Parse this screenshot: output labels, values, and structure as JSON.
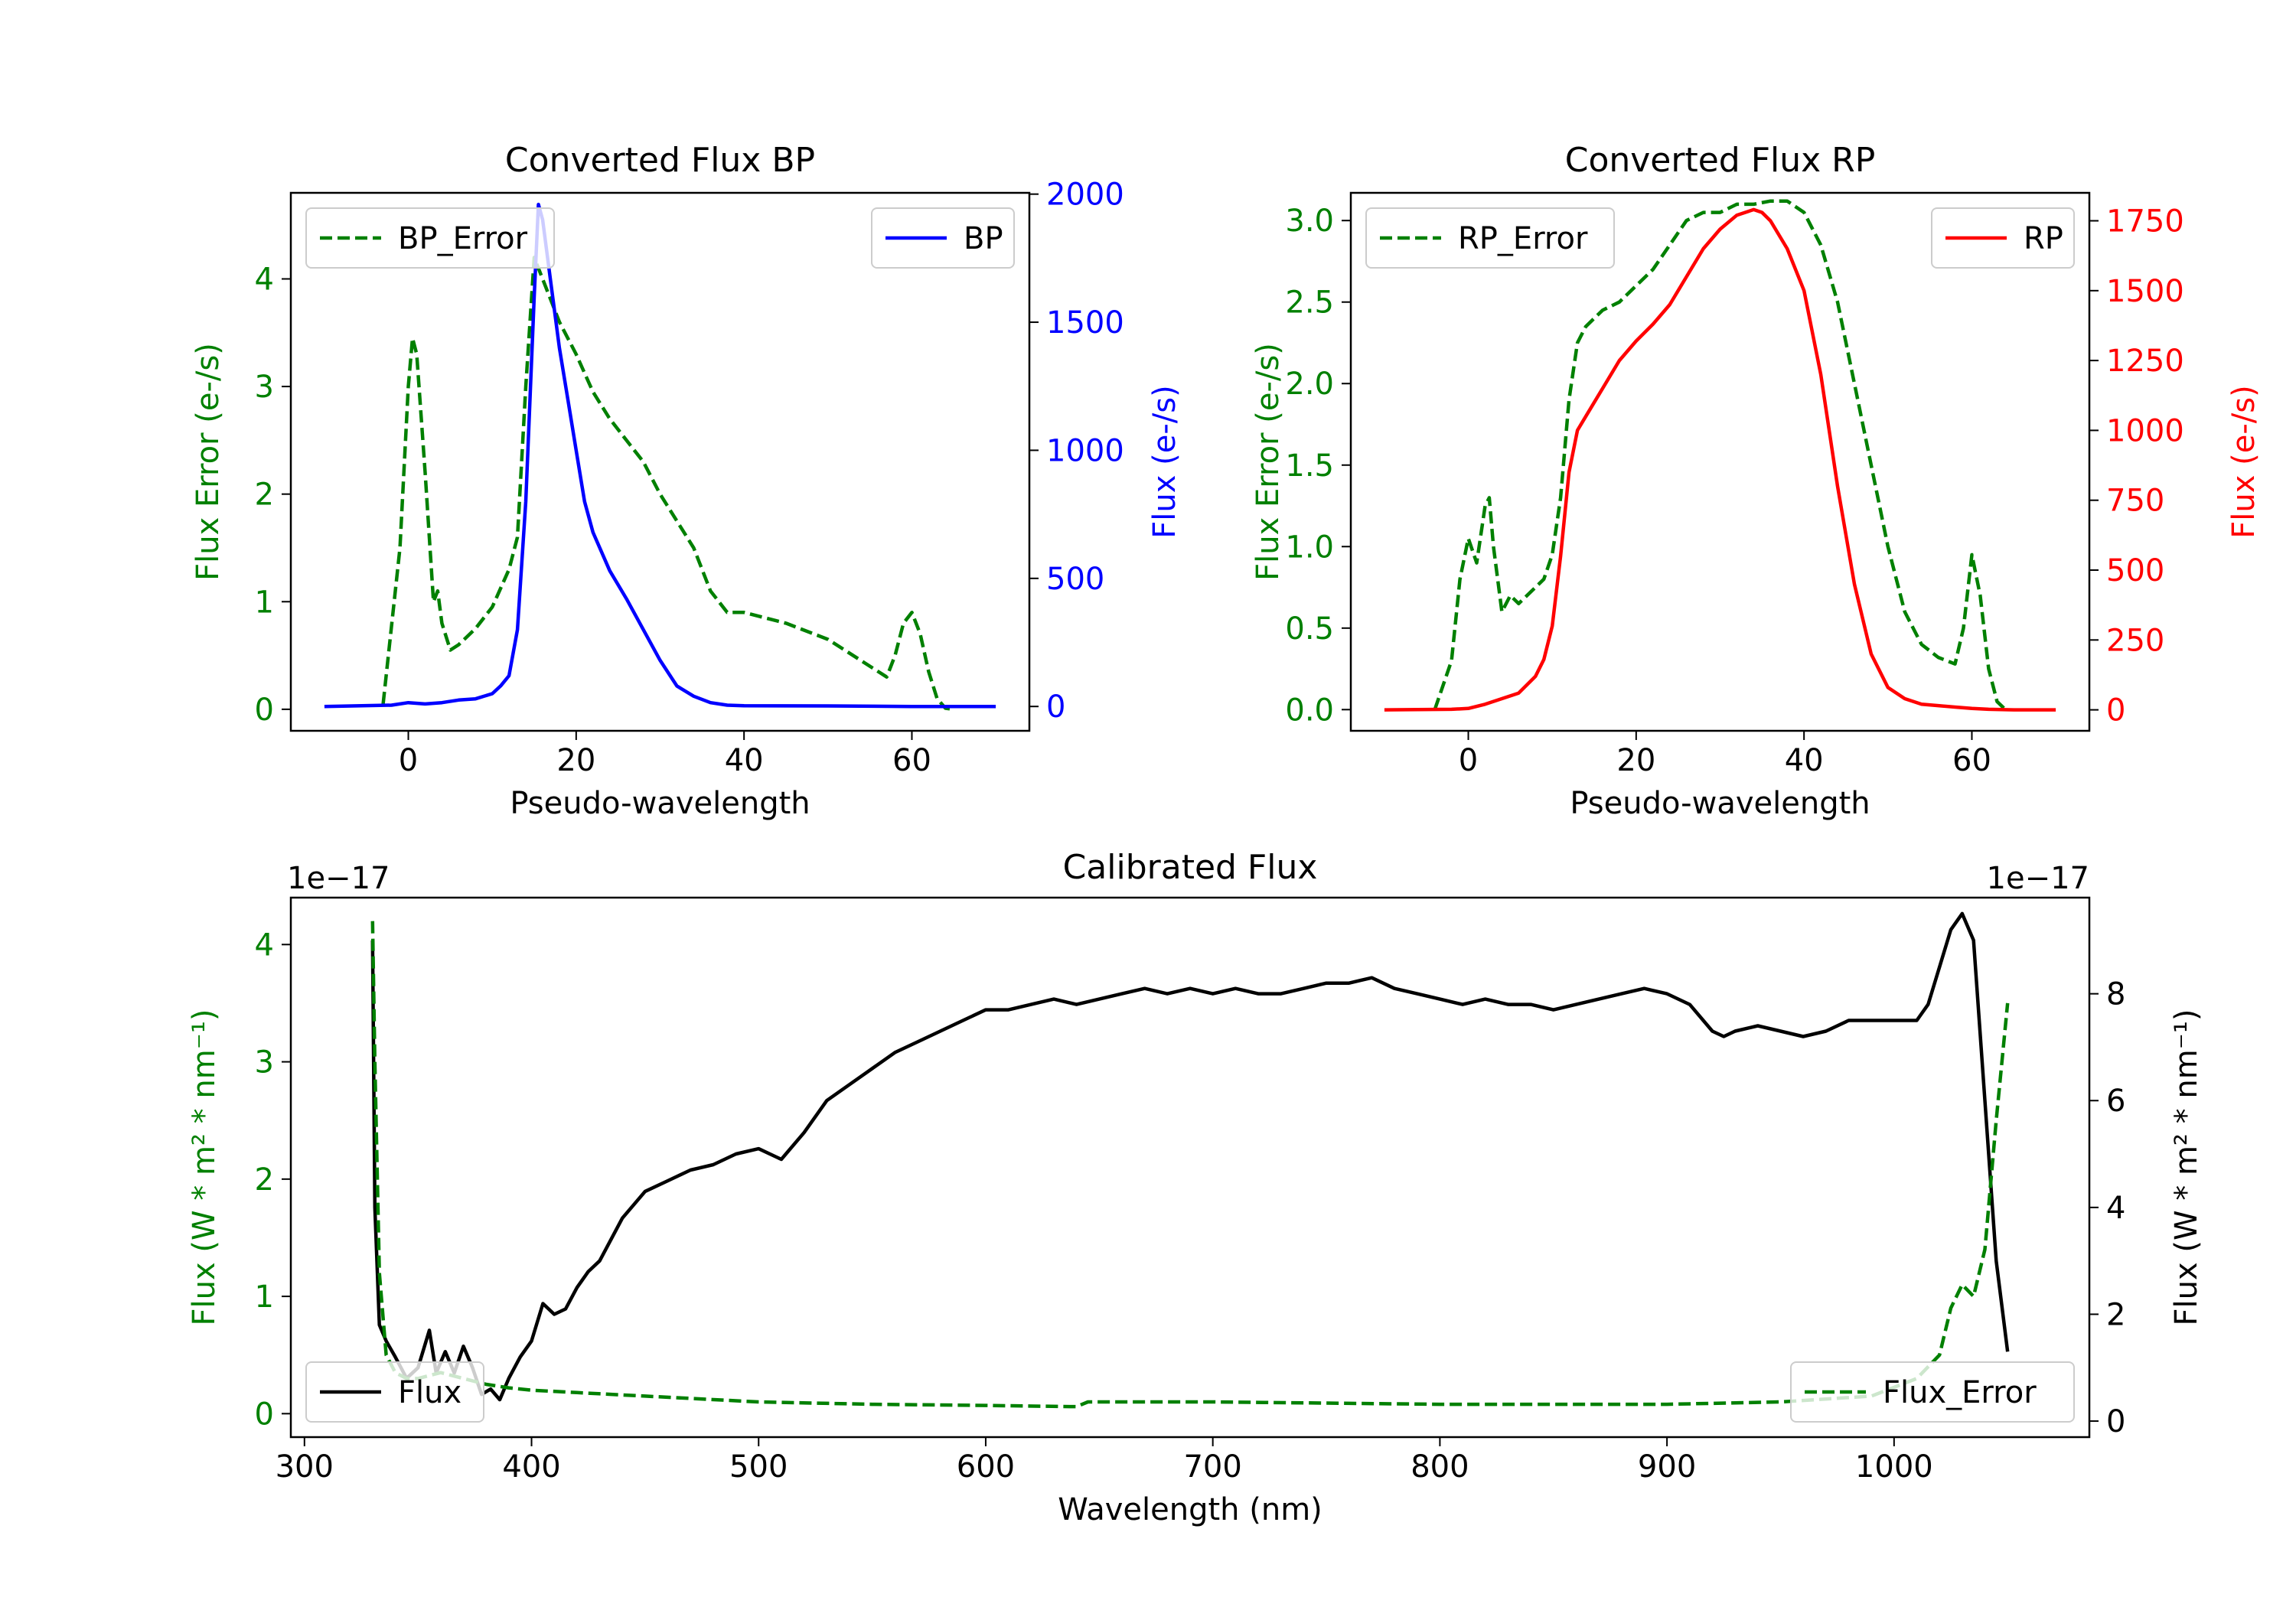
{
  "chart_data": [
    {
      "type": "line",
      "title": "Converted Flux BP",
      "xlabel": "Pseudo-wavelength",
      "ylabel_left": "Flux Error (e-/s)",
      "ylabel_right": "Flux (e-/s)",
      "xlim": [
        -14,
        74
      ],
      "ylim_left": [
        -0.2,
        4.8
      ],
      "ylim_right": [
        -95,
        2005
      ],
      "xticks": [
        "0",
        "20",
        "40",
        "60"
      ],
      "yticks_left": [
        "0",
        "1",
        "2",
        "3",
        "4"
      ],
      "yticks_right": [
        "0",
        "500",
        "1000",
        "1500",
        "2000"
      ],
      "series": [
        {
          "name": "BP_Error",
          "axis": "left",
          "style": "dashed",
          "color": "#008000",
          "x": [
            -3,
            -1,
            0,
            0.5,
            1,
            2,
            3,
            3.5,
            4,
            5,
            6,
            8,
            10,
            12,
            13,
            14,
            15,
            16,
            18,
            20,
            22,
            24,
            26,
            28,
            30,
            32,
            34,
            36,
            38,
            40,
            45,
            50,
            54,
            57,
            58,
            59,
            60,
            61,
            62,
            63,
            64,
            65
          ],
          "y": [
            0.05,
            1.5,
            3.0,
            3.45,
            3.3,
            2.2,
            1.0,
            1.1,
            0.8,
            0.55,
            0.6,
            0.75,
            0.95,
            1.3,
            1.6,
            3.0,
            4.2,
            4.0,
            3.6,
            3.3,
            2.95,
            2.7,
            2.5,
            2.3,
            2.0,
            1.75,
            1.5,
            1.1,
            0.9,
            0.9,
            0.8,
            0.65,
            0.45,
            0.3,
            0.5,
            0.8,
            0.9,
            0.7,
            0.35,
            0.1,
            0.01,
            0
          ]
        },
        {
          "name": "BP",
          "axis": "right",
          "style": "solid",
          "color": "#0000ff",
          "x": [
            -10,
            -2,
            0,
            2,
            4,
            6,
            8,
            10,
            11,
            12,
            13,
            14,
            15,
            15.5,
            16,
            17,
            18,
            19,
            20,
            21,
            22,
            24,
            26,
            28,
            30,
            32,
            34,
            36,
            38,
            40,
            50,
            60,
            70
          ],
          "y": [
            0,
            5,
            15,
            10,
            15,
            25,
            30,
            50,
            80,
            120,
            300,
            800,
            1600,
            1960,
            1900,
            1650,
            1400,
            1200,
            1000,
            800,
            680,
            530,
            420,
            300,
            180,
            80,
            40,
            15,
            5,
            3,
            2,
            0,
            0
          ]
        }
      ],
      "legend": [
        {
          "label": "BP_Error",
          "position": "upper left"
        },
        {
          "label": "BP",
          "position": "upper right"
        }
      ]
    },
    {
      "type": "line",
      "title": "Converted Flux RP",
      "xlabel": "Pseudo-wavelength",
      "ylabel_left": "Flux Error (e-/s)",
      "ylabel_right": "Flux (e-/s)",
      "xlim": [
        -14,
        74
      ],
      "ylim_left": [
        -0.13,
        3.17
      ],
      "ylim_right": [
        -75,
        1850
      ],
      "xticks": [
        "0",
        "20",
        "40",
        "60"
      ],
      "yticks_left": [
        "0.0",
        "0.5",
        "1.0",
        "1.5",
        "2.0",
        "2.5",
        "3.0"
      ],
      "yticks_right": [
        "0",
        "250",
        "500",
        "750",
        "1000",
        "1250",
        "1500",
        "1750"
      ],
      "series": [
        {
          "name": "RP_Error",
          "axis": "left",
          "style": "dashed",
          "color": "#008000",
          "x": [
            -4,
            -2,
            -1,
            0,
            1,
            2,
            2.5,
            3,
            4,
            5,
            6,
            8,
            9,
            10,
            11,
            12,
            13,
            14,
            16,
            18,
            20,
            22,
            24,
            26,
            28,
            30,
            32,
            34,
            36,
            38,
            40,
            42,
            44,
            46,
            48,
            50,
            52,
            54,
            56,
            57,
            58,
            59,
            60,
            61,
            62,
            63,
            64
          ],
          "y": [
            0,
            0.3,
            0.8,
            1.05,
            0.9,
            1.25,
            1.3,
            1.0,
            0.6,
            0.7,
            0.65,
            0.75,
            0.8,
            0.95,
            1.3,
            1.9,
            2.25,
            2.35,
            2.45,
            2.5,
            2.6,
            2.7,
            2.85,
            3.0,
            3.05,
            3.05,
            3.1,
            3.1,
            3.12,
            3.12,
            3.05,
            2.85,
            2.5,
            2.0,
            1.5,
            1.0,
            0.6,
            0.4,
            0.32,
            0.3,
            0.28,
            0.5,
            0.95,
            0.7,
            0.25,
            0.05,
            0
          ]
        },
        {
          "name": "RP",
          "axis": "right",
          "style": "solid",
          "color": "#ff0000",
          "x": [
            -10,
            -2,
            0,
            2,
            4,
            6,
            8,
            9,
            10,
            11,
            12,
            13,
            14,
            16,
            18,
            20,
            22,
            24,
            26,
            28,
            30,
            32,
            34,
            35,
            36,
            38,
            40,
            42,
            44,
            46,
            48,
            50,
            52,
            54,
            56,
            58,
            60,
            62,
            65,
            70
          ],
          "y": [
            0,
            2,
            5,
            20,
            40,
            60,
            120,
            180,
            300,
            550,
            850,
            1000,
            1050,
            1150,
            1250,
            1320,
            1380,
            1450,
            1550,
            1650,
            1720,
            1770,
            1790,
            1780,
            1750,
            1650,
            1500,
            1200,
            800,
            450,
            200,
            80,
            40,
            20,
            15,
            10,
            5,
            2,
            0,
            0
          ]
        }
      ],
      "legend": [
        {
          "label": "RP_Error",
          "position": "upper left"
        },
        {
          "label": "RP",
          "position": "upper right"
        }
      ]
    },
    {
      "type": "line",
      "title": "Calibrated Flux",
      "xlabel": "Wavelength (nm)",
      "ylabel_left": "Flux (W * m² * nm⁻¹)",
      "ylabel_right": "Flux (W * m² * nm⁻¹)",
      "offset_left": "1e−17",
      "offset_right": "1e−17",
      "xlim": [
        294,
        1086
      ],
      "ylim_left": [
        -0.2,
        4.4
      ],
      "ylim_right": [
        -0.3,
        9.8
      ],
      "xticks": [
        "300",
        "400",
        "500",
        "600",
        "700",
        "800",
        "900",
        "1000"
      ],
      "yticks_left": [
        "0",
        "1",
        "2",
        "3",
        "4"
      ],
      "yticks_right": [
        "0",
        "2",
        "4",
        "6",
        "8"
      ],
      "series": [
        {
          "name": "Flux",
          "axis": "right",
          "style": "solid",
          "color": "#000000",
          "x": [
            330,
            331,
            333,
            336,
            340,
            345,
            350,
            355,
            358,
            362,
            366,
            370,
            374,
            378,
            382,
            386,
            390,
            395,
            400,
            405,
            410,
            415,
            420,
            425,
            430,
            440,
            450,
            460,
            470,
            480,
            490,
            500,
            510,
            520,
            530,
            540,
            550,
            560,
            570,
            580,
            590,
            600,
            610,
            620,
            630,
            640,
            650,
            660,
            670,
            680,
            690,
            700,
            710,
            720,
            730,
            740,
            750,
            760,
            770,
            780,
            790,
            800,
            810,
            820,
            830,
            840,
            850,
            860,
            870,
            880,
            890,
            900,
            910,
            920,
            925,
            930,
            940,
            950,
            960,
            970,
            980,
            990,
            1000,
            1005,
            1010,
            1015,
            1020,
            1025,
            1030,
            1035,
            1040,
            1045,
            1050
          ],
          "y": [
            9.0,
            4.0,
            1.8,
            1.5,
            1.2,
            0.8,
            1.0,
            1.7,
            0.9,
            1.3,
            0.9,
            1.4,
            1.0,
            0.5,
            0.6,
            0.4,
            0.8,
            1.2,
            1.5,
            2.2,
            2.0,
            2.1,
            2.5,
            2.8,
            3.0,
            3.8,
            4.3,
            4.5,
            4.7,
            4.8,
            5.0,
            5.1,
            4.9,
            5.4,
            6.0,
            6.3,
            6.6,
            6.9,
            7.1,
            7.3,
            7.5,
            7.7,
            7.7,
            7.8,
            7.9,
            7.8,
            7.9,
            8.0,
            8.1,
            8.0,
            8.1,
            8.0,
            8.1,
            8.0,
            8.0,
            8.1,
            8.2,
            8.2,
            8.3,
            8.1,
            8.0,
            7.9,
            7.8,
            7.9,
            7.8,
            7.8,
            7.7,
            7.8,
            7.9,
            8.0,
            8.1,
            8.0,
            7.8,
            7.3,
            7.2,
            7.3,
            7.4,
            7.3,
            7.2,
            7.3,
            7.5,
            7.5,
            7.5,
            7.5,
            7.5,
            7.8,
            8.5,
            9.2,
            9.5,
            9.0,
            6.0,
            3.0,
            1.3
          ]
        },
        {
          "name": "Flux_Error",
          "axis": "left",
          "style": "dashed",
          "color": "#008000",
          "x": [
            330,
            331,
            333,
            336,
            340,
            345,
            350,
            360,
            370,
            380,
            390,
            400,
            420,
            450,
            500,
            550,
            600,
            640,
            645,
            700,
            800,
            900,
            950,
            990,
            1010,
            1020,
            1025,
            1030,
            1035,
            1040,
            1045,
            1050
          ],
          "y": [
            4.2,
            3.0,
            1.2,
            0.5,
            0.35,
            0.3,
            0.3,
            0.35,
            0.3,
            0.25,
            0.22,
            0.2,
            0.18,
            0.15,
            0.1,
            0.08,
            0.07,
            0.06,
            0.1,
            0.1,
            0.08,
            0.08,
            0.1,
            0.15,
            0.3,
            0.5,
            0.9,
            1.1,
            1.0,
            1.4,
            2.5,
            3.5
          ]
        }
      ],
      "legend": [
        {
          "label": "Flux",
          "position": "lower left"
        },
        {
          "label": "Flux_Error",
          "position": "lower right"
        }
      ]
    }
  ]
}
